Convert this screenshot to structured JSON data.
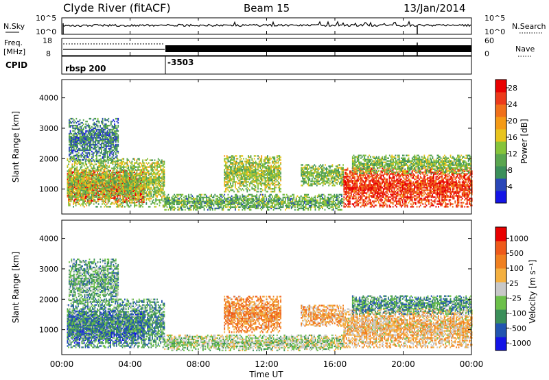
{
  "header": {
    "station": "Clyde River (fitACF)",
    "beam": "Beam 15",
    "date": "13/Jan/2014"
  },
  "noise_panel": {
    "left_label": "N.Sky",
    "right_label": "N.Search",
    "left_ticks": [
      "10^5",
      "10^0"
    ],
    "right_ticks": [
      "10^5",
      "10^0"
    ]
  },
  "freq_panel": {
    "left_label_line1": "Freq.",
    "left_label_line2": "[MHz]",
    "left_ticks": [
      "18",
      "8"
    ],
    "right_label": "Nave",
    "right_ticks": [
      "60",
      "0"
    ]
  },
  "cpid_panel": {
    "label": "CPID",
    "entries": [
      {
        "name": "rbsp 200",
        "start_hour": 0
      },
      {
        "name": "-3503",
        "start_hour": 6
      }
    ]
  },
  "x_axis": {
    "title": "Time UT",
    "ticks": [
      "00:00",
      "04:00",
      "08:00",
      "12:00",
      "16:00",
      "20:00",
      "00:00"
    ],
    "range_hours": [
      0,
      24
    ]
  },
  "chart_data": [
    {
      "type": "heatmap",
      "name": "power",
      "ylabel": "Slant Range [km]",
      "yticks": [
        "1000",
        "2000",
        "3000",
        "4000"
      ],
      "ylim_km": [
        180,
        4600
      ],
      "xlim_hours": [
        0,
        24
      ],
      "colorbar": {
        "label": "Power [dB]",
        "ticks": [
          "4",
          "8",
          "12",
          "16",
          "20",
          "24",
          "28"
        ],
        "colors": [
          "#1414e6",
          "#2a47b8",
          "#3b8f5a",
          "#5aa64f",
          "#86c43a",
          "#e8c41e",
          "#f49a16",
          "#f0701a",
          "#ec3a1a",
          "#e80000"
        ]
      },
      "regions": [
        {
          "t0": 0.3,
          "t1": 4.8,
          "r0": 550,
          "r1": 1600,
          "level": 0.9
        },
        {
          "t0": 0.3,
          "t1": 6.0,
          "r0": 400,
          "r1": 2000,
          "level": 0.45
        },
        {
          "t0": 0.4,
          "t1": 3.3,
          "r0": 1900,
          "r1": 3300,
          "level": 0.25
        },
        {
          "t0": 6.0,
          "t1": 16.5,
          "r0": 300,
          "r1": 800,
          "level": 0.35
        },
        {
          "t0": 9.5,
          "t1": 12.8,
          "r0": 900,
          "r1": 2100,
          "level": 0.45
        },
        {
          "t0": 14.0,
          "t1": 16.5,
          "r0": 1100,
          "r1": 1800,
          "level": 0.4
        },
        {
          "t0": 16.5,
          "t1": 24.0,
          "r0": 400,
          "r1": 1700,
          "level": 0.85
        },
        {
          "t0": 17.0,
          "t1": 24.0,
          "r0": 1500,
          "r1": 2100,
          "level": 0.4
        }
      ]
    },
    {
      "type": "heatmap",
      "name": "velocity",
      "ylabel": "Slant Range [km]",
      "yticks": [
        "1000",
        "2000",
        "3000",
        "4000"
      ],
      "ylim_km": [
        180,
        4600
      ],
      "xlim_hours": [
        0,
        24
      ],
      "colorbar": {
        "label": "Velocity [m s⁻¹]",
        "ticks": [
          "1000",
          "500",
          "100",
          "25",
          "-25",
          "-100",
          "-500",
          "-1000"
        ],
        "colors": [
          "#1414e6",
          "#2255b0",
          "#3b8f5a",
          "#6cc04a",
          "#c8c8c8",
          "#f4b040",
          "#f08020",
          "#ee5a1a",
          "#e80000"
        ]
      },
      "regions": [
        {
          "t0": 0.3,
          "t1": 4.8,
          "r0": 550,
          "r1": 1600,
          "level": 0.05
        },
        {
          "t0": 0.3,
          "t1": 6.0,
          "r0": 400,
          "r1": 2000,
          "level": 0.3
        },
        {
          "t0": 0.4,
          "t1": 3.3,
          "r0": 1900,
          "r1": 3300,
          "level": 0.35
        },
        {
          "t0": 6.0,
          "t1": 16.5,
          "r0": 300,
          "r1": 800,
          "level": 0.45
        },
        {
          "t0": 9.5,
          "t1": 12.8,
          "r0": 900,
          "r1": 2100,
          "level": 0.7
        },
        {
          "t0": 14.0,
          "t1": 16.5,
          "r0": 1100,
          "r1": 1800,
          "level": 0.65
        },
        {
          "t0": 16.5,
          "t1": 24.0,
          "r0": 400,
          "r1": 1700,
          "level": 0.6
        },
        {
          "t0": 17.0,
          "t1": 24.0,
          "r0": 1500,
          "r1": 2100,
          "level": 0.3
        }
      ]
    }
  ]
}
